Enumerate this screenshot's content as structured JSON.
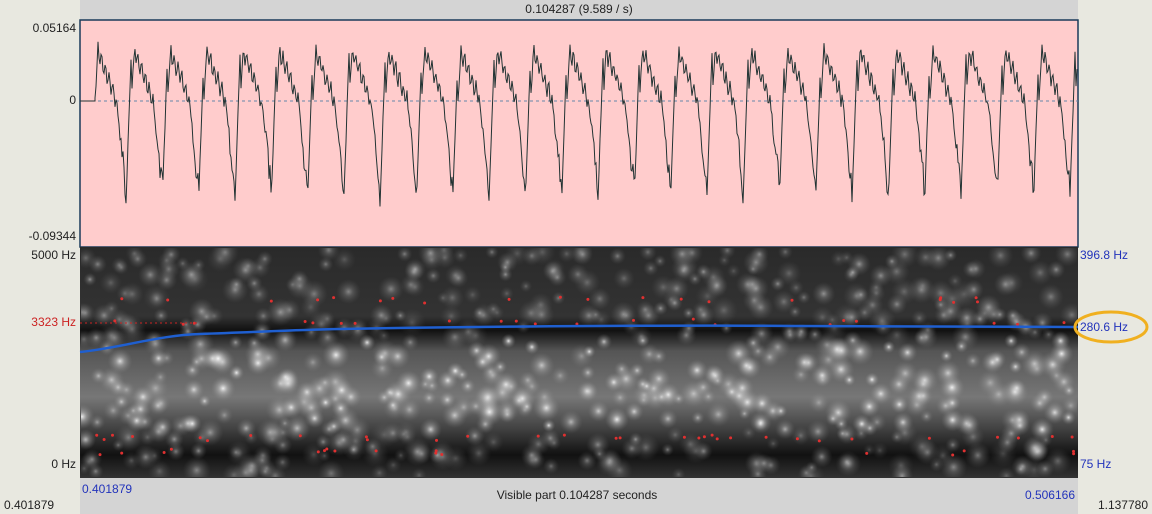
{
  "top_bar": "0.104287 (9.589 / s)",
  "waveform": {
    "y_max": "0.05164",
    "y_zero": "0",
    "y_min": "-0.09344"
  },
  "spectrogram": {
    "freq_max": "5000 Hz",
    "freq_cursor": "3323 Hz",
    "freq_min": "0 Hz",
    "pitch_max": "396.8 Hz",
    "pitch_value": "280.6 Hz",
    "pitch_min": "75 Hz"
  },
  "bottom_bar": {
    "visible_start": "0.401879",
    "visible_label": "Visible part 0.104287 seconds",
    "visible_end": "0.506166",
    "total_start": "0.401879",
    "total_end": "1.137780"
  }
}
